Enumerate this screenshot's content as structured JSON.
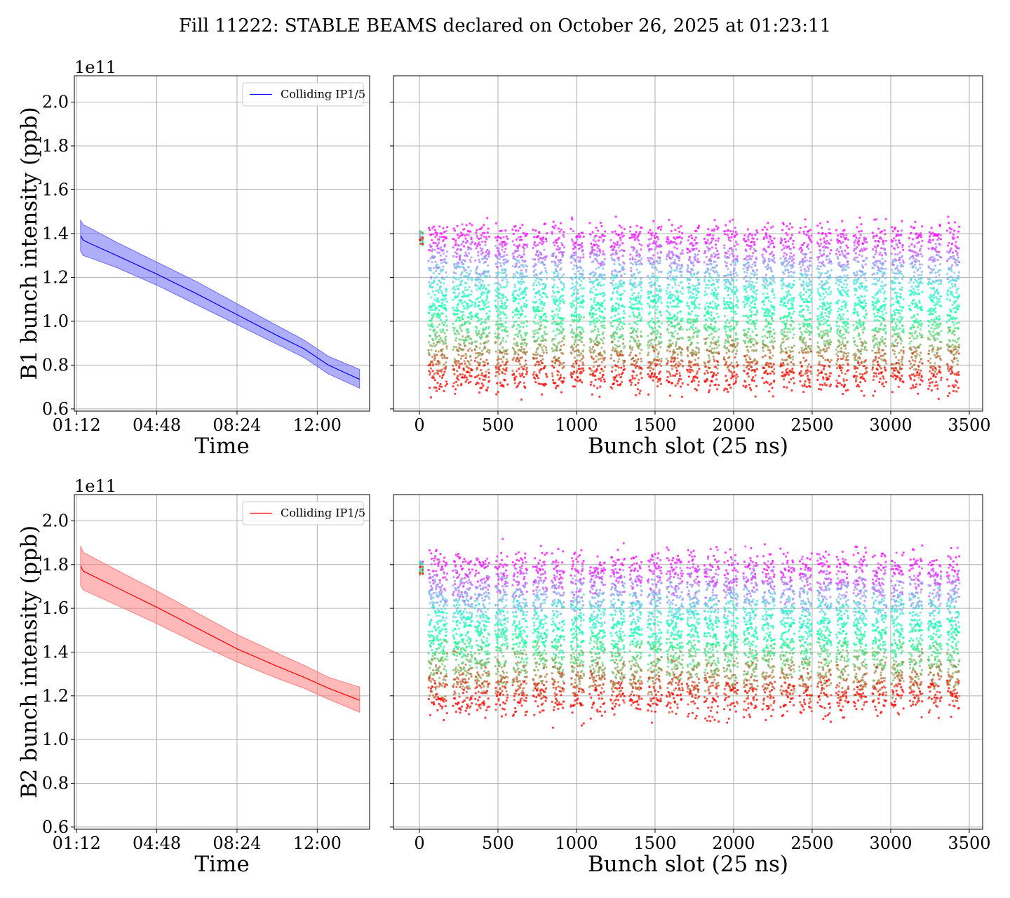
{
  "figure": {
    "title": "Fill 11222: STABLE BEAMS declared on October 26, 2025 at 01:23:11"
  },
  "chart_data": [
    {
      "id": "b1-time",
      "type": "line",
      "title": "",
      "xlabel": "Time",
      "ylabel": "B1 bunch intensity (ppb)",
      "y_offset_label": "1e11",
      "x_ticks": [
        "01:12",
        "04:48",
        "08:24",
        "12:00"
      ],
      "x_tick_hours": [
        1.2,
        4.8,
        8.4,
        12.0
      ],
      "xlim_hours": [
        1.1,
        14.35
      ],
      "y_ticks": [
        "0.6",
        "0.8",
        "1.0",
        "1.2",
        "1.4",
        "1.6",
        "1.8",
        "2.0"
      ],
      "ylim": [
        0.59,
        2.12
      ],
      "grid": true,
      "legend": {
        "placement": "top-right",
        "entries": [
          "Colliding IP1/5"
        ]
      },
      "series": [
        {
          "name": "Colliding IP1/5",
          "color": "#0000ff",
          "band_color": "#6b6bf5",
          "x_hours": [
            1.38,
            1.5,
            1.8,
            3,
            4.8,
            6.6,
            8.4,
            10.2,
            11.4,
            12.5,
            13.9
          ],
          "mean": [
            1.39,
            1.37,
            1.355,
            1.3,
            1.215,
            1.125,
            1.03,
            0.935,
            0.875,
            0.8,
            0.735
          ],
          "lower": [
            1.32,
            1.3,
            1.29,
            1.245,
            1.165,
            1.075,
            0.985,
            0.895,
            0.835,
            0.76,
            0.695
          ],
          "upper": [
            1.46,
            1.44,
            1.425,
            1.36,
            1.27,
            1.18,
            1.08,
            0.98,
            0.915,
            0.84,
            0.78
          ]
        }
      ]
    },
    {
      "id": "b1-slot",
      "type": "scatter",
      "title": "",
      "xlabel": "Bunch slot (25 ns)",
      "ylabel": "",
      "x_ticks": [
        0,
        500,
        1000,
        1500,
        2000,
        2500,
        3000,
        3500
      ],
      "xlim": [
        -165,
        3585
      ],
      "y_ticks": [
        0.6,
        0.8,
        1.0,
        1.2,
        1.4,
        1.6,
        1.8,
        2.0
      ],
      "ylim": [
        0.59,
        2.12
      ],
      "grid": true,
      "colormap": "rainbow (color encodes time: violet = start, red = end)",
      "train_ranges": [
        [
          60,
          175
        ],
        [
          215,
          335
        ],
        [
          355,
          445
        ],
        [
          485,
          560
        ],
        [
          595,
          685
        ],
        [
          725,
          810
        ],
        [
          845,
          920
        ],
        [
          965,
          1045
        ],
        [
          1085,
          1180
        ],
        [
          1220,
          1305
        ],
        [
          1340,
          1415
        ],
        [
          1455,
          1540
        ],
        [
          1575,
          1675
        ],
        [
          1705,
          1780
        ],
        [
          1815,
          1905
        ],
        [
          1940,
          2025
        ],
        [
          2065,
          2150
        ],
        [
          2185,
          2260
        ],
        [
          2300,
          2385
        ],
        [
          2420,
          2495
        ],
        [
          2535,
          2620
        ],
        [
          2655,
          2730
        ],
        [
          2765,
          2845
        ],
        [
          2885,
          2970
        ],
        [
          3005,
          3080
        ],
        [
          3120,
          3200
        ],
        [
          3240,
          3320
        ],
        [
          3360,
          3435
        ]
      ],
      "pilot_slots": [
        5,
        20
      ],
      "y_start": 1.39,
      "y_end": 0.735,
      "spread": 0.07
    },
    {
      "id": "b2-time",
      "type": "line",
      "title": "",
      "xlabel": "Time",
      "ylabel": "B2 bunch intensity (ppb)",
      "y_offset_label": "1e11",
      "x_ticks": [
        "01:12",
        "04:48",
        "08:24",
        "12:00"
      ],
      "x_tick_hours": [
        1.2,
        4.8,
        8.4,
        12.0
      ],
      "xlim_hours": [
        1.1,
        14.35
      ],
      "y_ticks": [
        "0.6",
        "0.8",
        "1.0",
        "1.2",
        "1.4",
        "1.6",
        "1.8",
        "2.0"
      ],
      "ylim": [
        0.59,
        2.12
      ],
      "grid": true,
      "legend": {
        "placement": "top-right",
        "entries": [
          "Colliding IP1/5"
        ]
      },
      "series": [
        {
          "name": "Colliding IP1/5",
          "color": "#ff0000",
          "band_color": "#ff8080",
          "x_hours": [
            1.38,
            1.5,
            1.8,
            3,
            4.8,
            6.6,
            8.4,
            10.2,
            11.4,
            12.5,
            13.9
          ],
          "mean": [
            1.795,
            1.77,
            1.755,
            1.695,
            1.605,
            1.51,
            1.415,
            1.335,
            1.285,
            1.235,
            1.18
          ],
          "lower": [
            1.705,
            1.685,
            1.67,
            1.615,
            1.53,
            1.44,
            1.355,
            1.28,
            1.235,
            1.185,
            1.125
          ],
          "upper": [
            1.885,
            1.855,
            1.84,
            1.775,
            1.68,
            1.58,
            1.48,
            1.395,
            1.34,
            1.285,
            1.24
          ]
        }
      ]
    },
    {
      "id": "b2-slot",
      "type": "scatter",
      "title": "",
      "xlabel": "Bunch slot (25 ns)",
      "ylabel": "",
      "x_ticks": [
        0,
        500,
        1000,
        1500,
        2000,
        2500,
        3000,
        3500
      ],
      "xlim": [
        -165,
        3585
      ],
      "y_ticks": [
        0.6,
        0.8,
        1.0,
        1.2,
        1.4,
        1.6,
        1.8,
        2.0
      ],
      "ylim": [
        0.59,
        2.12
      ],
      "grid": true,
      "colormap": "rainbow (color encodes time: violet = start, red = end)",
      "train_ranges": [
        [
          60,
          175
        ],
        [
          215,
          335
        ],
        [
          355,
          445
        ],
        [
          485,
          560
        ],
        [
          595,
          685
        ],
        [
          725,
          810
        ],
        [
          845,
          920
        ],
        [
          965,
          1045
        ],
        [
          1085,
          1180
        ],
        [
          1220,
          1305
        ],
        [
          1340,
          1415
        ],
        [
          1455,
          1540
        ],
        [
          1575,
          1675
        ],
        [
          1705,
          1780
        ],
        [
          1815,
          1905
        ],
        [
          1940,
          2025
        ],
        [
          2065,
          2150
        ],
        [
          2185,
          2260
        ],
        [
          2300,
          2385
        ],
        [
          2420,
          2495
        ],
        [
          2535,
          2620
        ],
        [
          2655,
          2730
        ],
        [
          2765,
          2845
        ],
        [
          2885,
          2970
        ],
        [
          3005,
          3080
        ],
        [
          3120,
          3200
        ],
        [
          3240,
          3320
        ],
        [
          3360,
          3435
        ]
      ],
      "pilot_slots": [
        5,
        20
      ],
      "y_start": 1.795,
      "y_end": 1.18,
      "spread": 0.09
    }
  ]
}
